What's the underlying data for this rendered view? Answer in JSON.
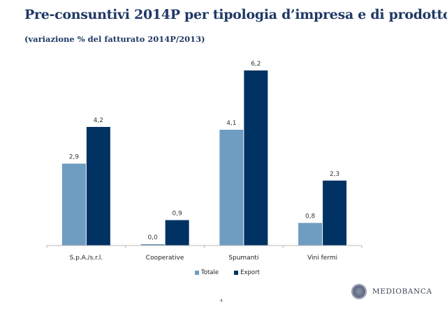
{
  "header": {
    "title": "Pre-consuntivi 2014P per tipologia d’impresa e di prodotto",
    "subtitle": "(variazione % del fatturato 2014P/2013)"
  },
  "chart_data": {
    "type": "bar",
    "title": "Pre-consuntivi 2014P per tipologia d’impresa e di prodotto",
    "subtitle": "(variazione % del fatturato 2014P/2013)",
    "xlabel": "",
    "ylabel": "",
    "categories": [
      "S.p.A./s.r.l.",
      "Cooperative",
      "Spumanti",
      "Vini fermi"
    ],
    "series": [
      {
        "name": "Totale",
        "color": "#6f9cc1",
        "values": [
          2.9,
          0.0,
          4.1,
          0.8
        ],
        "labels": [
          "2,9",
          "0,0",
          "4,1",
          "0,8"
        ]
      },
      {
        "name": "Export",
        "color": "#003263",
        "values": [
          4.2,
          0.9,
          6.2,
          2.3
        ],
        "labels": [
          "4,2",
          "0,9",
          "6,2",
          "2,3"
        ]
      }
    ],
    "ylim": [
      0,
      6.2
    ],
    "grid": false,
    "legend_position": "bottom"
  },
  "footer": {
    "page_number": "4",
    "brand": "MEDIOBANCA"
  }
}
